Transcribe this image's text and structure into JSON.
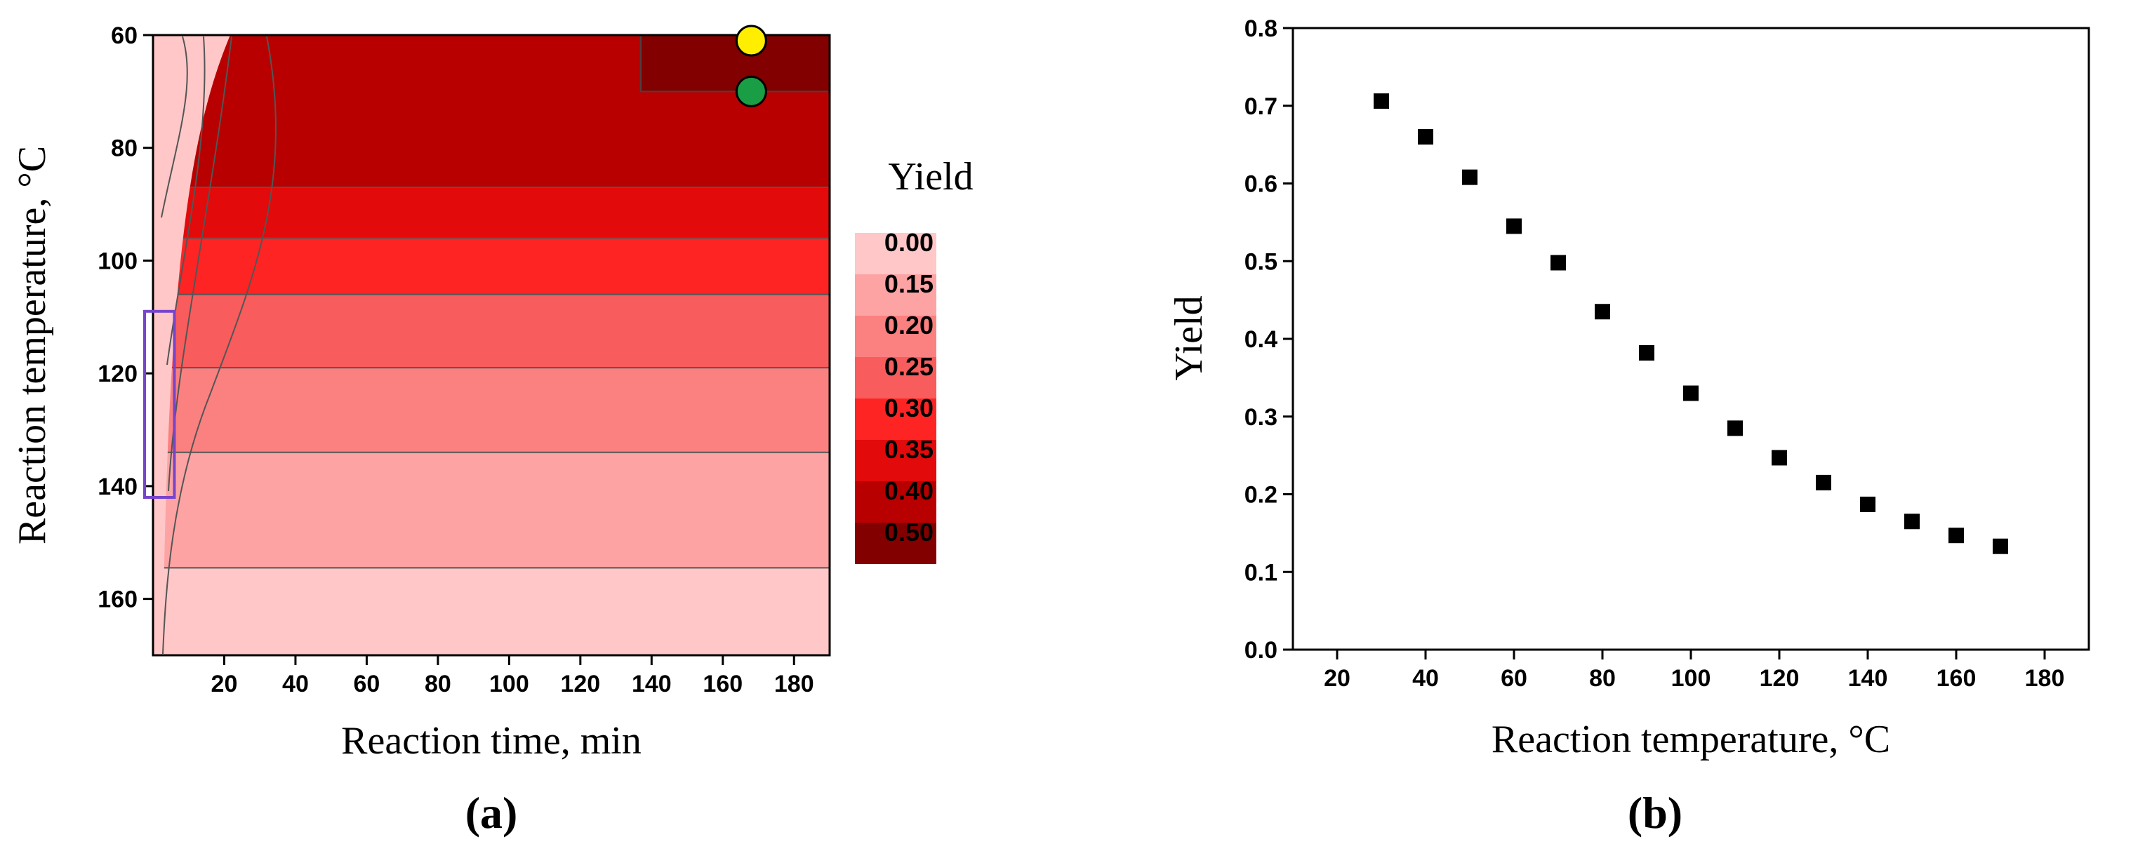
{
  "chart_data": [
    {
      "type": "contour",
      "panel_label": "(a)",
      "xlabel": "Reaction time, min",
      "ylabel": "Reaction temperature, °C",
      "xlim": [
        0,
        190
      ],
      "ylim": [
        60,
        170
      ],
      "y_inverted": true,
      "x_ticks": [
        20,
        40,
        60,
        80,
        100,
        120,
        140,
        160,
        180
      ],
      "y_ticks": [
        60,
        80,
        100,
        120,
        140,
        160
      ],
      "colorbar": {
        "title": "Yield",
        "levels": [
          "0.00",
          "0.15",
          "0.20",
          "0.25",
          "0.30",
          "0.35",
          "0.40",
          "0.50"
        ],
        "colors": [
          "#ffc7c7",
          "#fda3a3",
          "#fb8080",
          "#f85c5c",
          "#ff2424",
          "#e20a0a",
          "#b80000",
          "#830000"
        ]
      },
      "regions": [
        {
          "level": 0,
          "y_from": 154.5,
          "y_to": 170
        },
        {
          "level": 1,
          "y_from": 134,
          "y_to": 154.5
        },
        {
          "level": 2,
          "y_from": 119,
          "y_to": 134
        },
        {
          "level": 3,
          "y_from": 106,
          "y_to": 119
        },
        {
          "level": 4,
          "y_from": 96,
          "y_to": 106
        },
        {
          "level": 5,
          "y_from": 87,
          "y_to": 96
        },
        {
          "level": 6,
          "y_from": 60,
          "y_to": 87
        },
        {
          "level": 7,
          "x_from": 137,
          "x_to": 190,
          "y_from": 60,
          "y_to": 70
        }
      ],
      "markers": [
        {
          "name": "yellow-point",
          "x": 168,
          "y": 61,
          "color": "#ffee00"
        },
        {
          "name": "green-point",
          "x": 168,
          "y": 70,
          "color": "#1a9e45"
        }
      ],
      "highlight_box": {
        "x_from": 0,
        "x_to": 6,
        "y_from": 109,
        "y_to": 142,
        "color": "#7744cc"
      }
    },
    {
      "type": "scatter",
      "panel_label": "(b)",
      "xlabel": "Reaction temperature, °C",
      "ylabel": "Yield",
      "xlim": [
        10,
        190
      ],
      "ylim": [
        0.0,
        0.8
      ],
      "x_ticks": [
        20,
        40,
        60,
        80,
        100,
        120,
        140,
        160,
        180
      ],
      "y_ticks": [
        "0.0",
        "0.1",
        "0.2",
        "0.3",
        "0.4",
        "0.5",
        "0.6",
        "0.7",
        "0.8"
      ],
      "x": [
        30,
        40,
        50,
        60,
        70,
        80,
        90,
        100,
        110,
        120,
        130,
        140,
        150,
        160,
        170
      ],
      "y": [
        0.706,
        0.66,
        0.608,
        0.545,
        0.498,
        0.435,
        0.382,
        0.33,
        0.285,
        0.247,
        0.215,
        0.187,
        0.165,
        0.147,
        0.133
      ],
      "marker": "square",
      "marker_color": "#000000"
    }
  ]
}
